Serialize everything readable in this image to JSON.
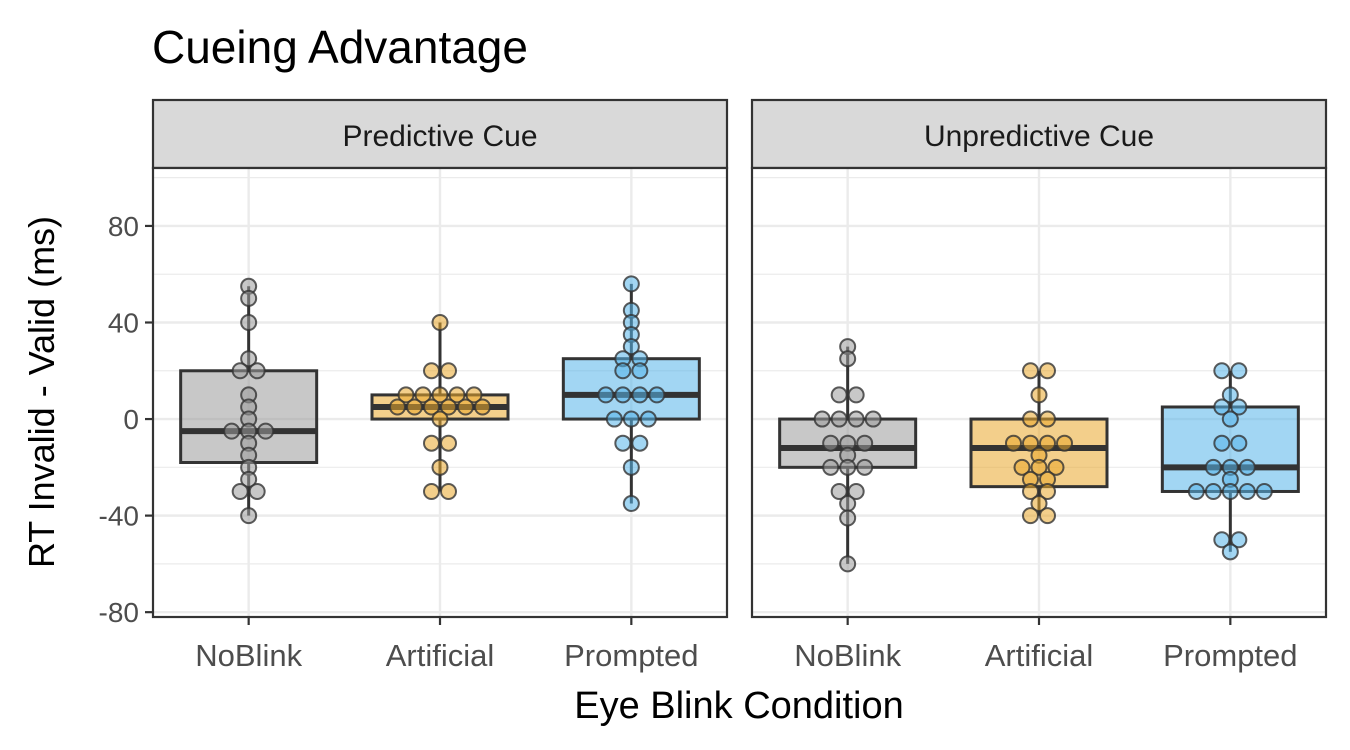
{
  "chart_data": {
    "type": "boxplot",
    "title": "Cueing Advantage",
    "xlabel": "Eye Blink Condition",
    "ylabel": "RT Invalid - Valid (ms)",
    "ylim": [
      -82,
      104
    ],
    "yticks": [
      -80,
      -40,
      0,
      40,
      80
    ],
    "ytick_labels": [
      "-80",
      "-40",
      "0",
      "40",
      "80"
    ],
    "categories": [
      "NoBlink",
      "Artificial",
      "Prompted"
    ],
    "grid": true,
    "legend": "none",
    "colors": {
      "NoBlink": "#9a9a9a",
      "Artificial": "#e9a72c",
      "Prompted": "#56b4e9",
      "median": "#333333",
      "panel_border": "#333333",
      "strip_fill": "#d9d9d9",
      "grid": "#ebebeb"
    },
    "panels": [
      {
        "strip": "Predictive Cue",
        "groups": [
          {
            "category": "NoBlink",
            "q1": -18,
            "median": -5,
            "q3": 20,
            "whisker_low": -40,
            "whisker_high": 55,
            "points": [
              55,
              50,
              40,
              25,
              20,
              20,
              10,
              5,
              0,
              -5,
              -5,
              -5,
              -10,
              -15,
              -20,
              -25,
              -30,
              -30,
              -40
            ]
          },
          {
            "category": "Artificial",
            "q1": 0,
            "median": 5,
            "q3": 10,
            "whisker_low": -30,
            "whisker_high": 40,
            "points": [
              40,
              20,
              20,
              10,
              10,
              10,
              10,
              10,
              5,
              5,
              5,
              5,
              5,
              5,
              0,
              -10,
              -10,
              -20,
              -30,
              -30
            ]
          },
          {
            "category": "Prompted",
            "q1": 0,
            "median": 10,
            "q3": 25,
            "whisker_low": -35,
            "whisker_high": 56,
            "points": [
              56,
              45,
              40,
              35,
              30,
              25,
              25,
              20,
              20,
              10,
              10,
              10,
              10,
              0,
              0,
              0,
              -10,
              -10,
              -20,
              -35
            ]
          }
        ]
      },
      {
        "strip": "Unpredictive Cue",
        "groups": [
          {
            "category": "NoBlink",
            "q1": -20,
            "median": -12,
            "q3": 0,
            "whisker_low": -60,
            "whisker_high": 30,
            "points": [
              30,
              25,
              10,
              10,
              0,
              0,
              0,
              0,
              -10,
              -10,
              -10,
              -15,
              -20,
              -20,
              -20,
              -30,
              -30,
              -35,
              -41,
              -60
            ]
          },
          {
            "category": "Artificial",
            "q1": -28,
            "median": -12,
            "q3": 0,
            "whisker_low": -40,
            "whisker_high": 20,
            "points": [
              20,
              20,
              10,
              0,
              0,
              -10,
              -10,
              -10,
              -10,
              -15,
              -20,
              -20,
              -20,
              -25,
              -25,
              -30,
              -30,
              -35,
              -40,
              -40
            ]
          },
          {
            "category": "Prompted",
            "q1": -30,
            "median": -20,
            "q3": 5,
            "whisker_low": -55,
            "whisker_high": 20,
            "points": [
              20,
              20,
              10,
              5,
              5,
              0,
              -10,
              -10,
              -20,
              -20,
              -20,
              -25,
              -30,
              -30,
              -30,
              -30,
              -30,
              -50,
              -50,
              -55
            ]
          }
        ]
      }
    ]
  }
}
